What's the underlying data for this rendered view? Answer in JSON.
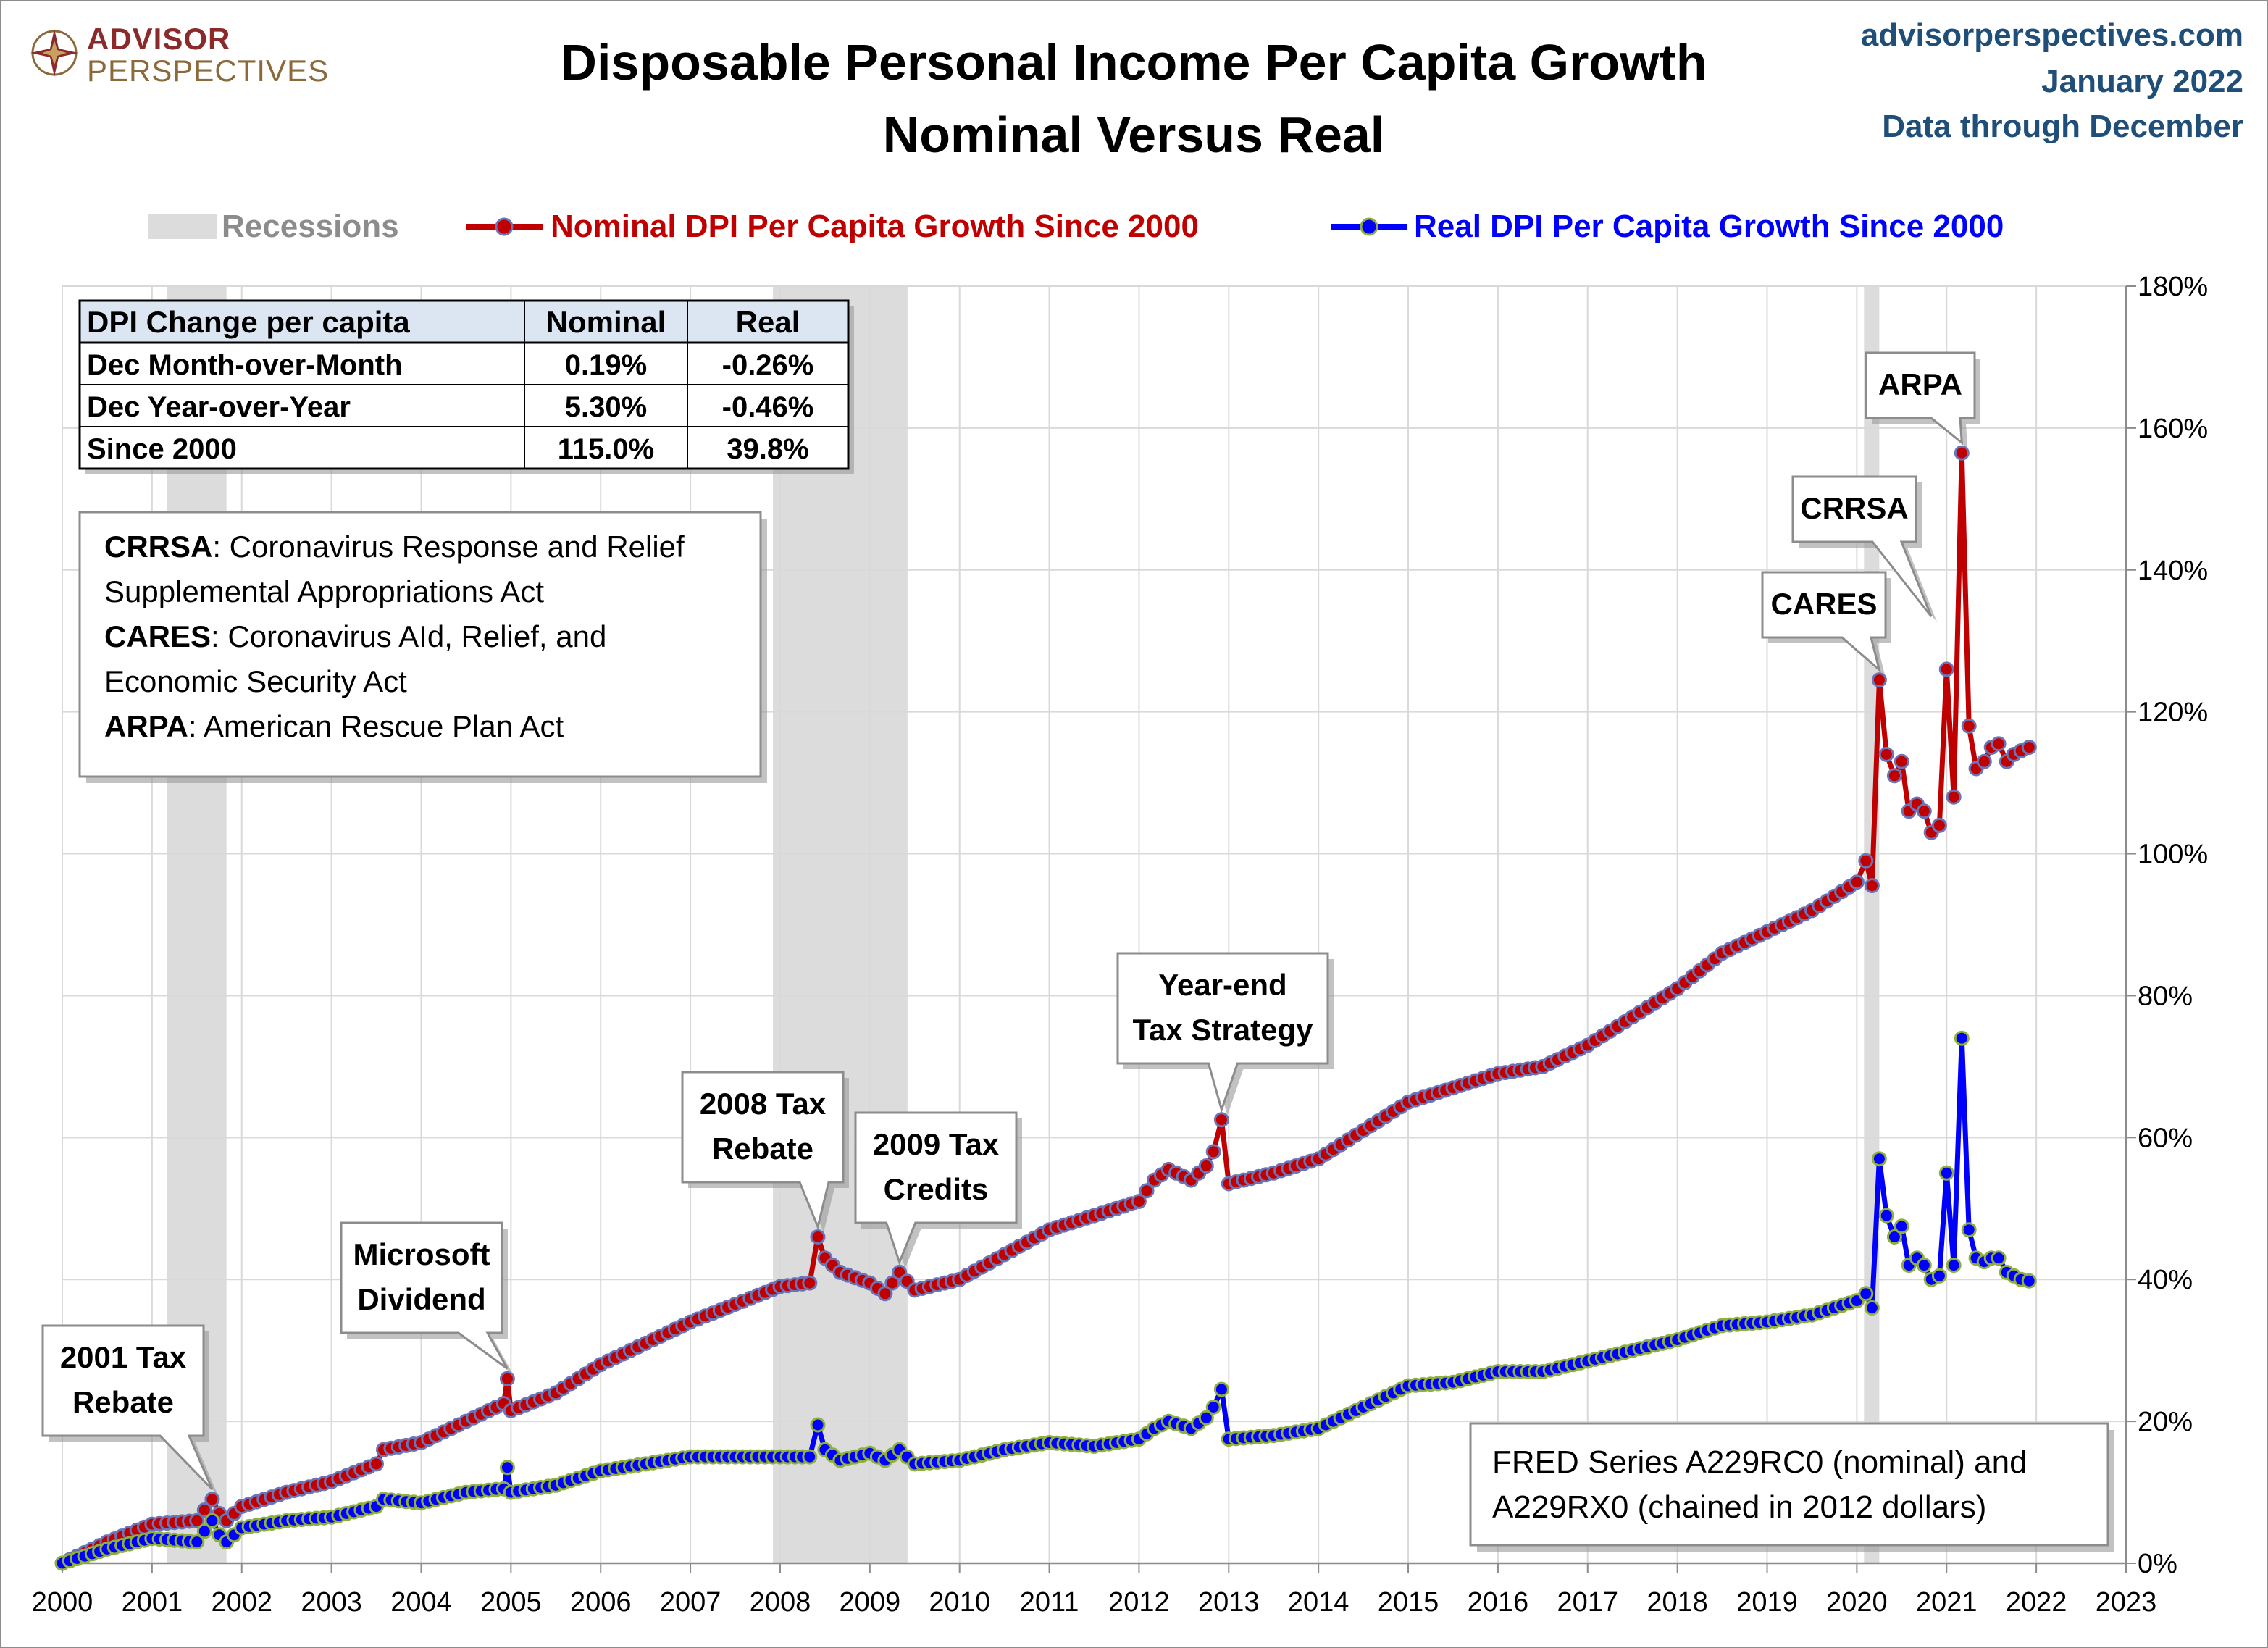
{
  "header": {
    "logo_line1": "ADVISOR",
    "logo_line2": "PERSPECTIVES",
    "title_line1": "Disposable Personal Income Per Capita Growth",
    "title_line2": "Nominal Versus Real",
    "source_line1": "advisorperspectives.com",
    "source_line2": "January 2022",
    "source_line3": "Data through December"
  },
  "legend": {
    "recessions": "Recessions",
    "nominal": "Nominal DPI Per Capita Growth Since 2000",
    "real": "Real DPI Per Capita Growth Since 2000"
  },
  "table": {
    "headers": [
      "DPI Change per capita",
      "Nominal",
      "Real"
    ],
    "rows": [
      [
        "Dec Month-over-Month",
        "0.19%",
        "-0.26%"
      ],
      [
        "Dec Year-over-Year",
        "5.30%",
        "-0.46%"
      ],
      [
        "Since 2000",
        "115.0%",
        "39.8%"
      ]
    ]
  },
  "glossary": [
    {
      "term": "CRRSA",
      "text": ": Coronavirus Response and Relief",
      "cont": "Supplemental Appropriations Act"
    },
    {
      "term": "CARES",
      "text": ": Coronavirus AId, Relief, and",
      "cont": "Economic Security Act"
    },
    {
      "term": "ARPA",
      "text": ": American Rescue Plan Act",
      "cont": ""
    }
  ],
  "source_note": [
    "FRED Series A229RC0 (nominal) and",
    "A229RX0 (chained in 2012 dollars)"
  ],
  "colors": {
    "nominal": "#c00000",
    "real": "#0000ff",
    "nominal_marker_edge": "#6a74b8",
    "real_marker_edge": "#8fb03a",
    "recession": "#dcdcdc",
    "grid": "#d9d9d9"
  },
  "chart_data": {
    "type": "line",
    "x_unit": "year",
    "xlim": [
      2000,
      2023
    ],
    "ylim": [
      0,
      180
    ],
    "x_ticks": [
      "2000",
      "2001",
      "2002",
      "2003",
      "2004",
      "2005",
      "2006",
      "2007",
      "2008",
      "2009",
      "2010",
      "2011",
      "2012",
      "2013",
      "2014",
      "2015",
      "2016",
      "2017",
      "2018",
      "2019",
      "2020",
      "2021",
      "2022",
      "2023"
    ],
    "y_ticks": [
      "0%",
      "20%",
      "40%",
      "60%",
      "80%",
      "100%",
      "120%",
      "140%",
      "160%",
      "180%"
    ],
    "y_tick_values": [
      0,
      20,
      40,
      60,
      80,
      100,
      120,
      140,
      160,
      180
    ],
    "grid": true,
    "legend_position": "top",
    "recessions": [
      [
        2001.17,
        2001.83
      ],
      [
        2007.92,
        2009.42
      ],
      [
        2020.08,
        2020.25
      ]
    ],
    "series": [
      {
        "name": "Nominal DPI Per Capita Growth Since 2000",
        "key": "nominal",
        "points": [
          [
            2000.0,
            0
          ],
          [
            2000.5,
            3
          ],
          [
            2001.0,
            5.5
          ],
          [
            2001.5,
            6
          ],
          [
            2001.67,
            9
          ],
          [
            2001.75,
            7
          ],
          [
            2001.83,
            6
          ],
          [
            2002.0,
            8
          ],
          [
            2002.5,
            10
          ],
          [
            2003.0,
            11.5
          ],
          [
            2003.5,
            14
          ],
          [
            2003.58,
            16
          ],
          [
            2004.0,
            17
          ],
          [
            2004.5,
            20
          ],
          [
            2004.92,
            22.5
          ],
          [
            2004.96,
            26
          ],
          [
            2005.0,
            21.5
          ],
          [
            2005.5,
            24
          ],
          [
            2006.0,
            28
          ],
          [
            2006.5,
            31
          ],
          [
            2007.0,
            34
          ],
          [
            2007.5,
            36.5
          ],
          [
            2008.0,
            39
          ],
          [
            2008.33,
            39.5
          ],
          [
            2008.42,
            46
          ],
          [
            2008.5,
            43
          ],
          [
            2008.67,
            41
          ],
          [
            2009.0,
            39.5
          ],
          [
            2009.17,
            38
          ],
          [
            2009.33,
            41
          ],
          [
            2009.5,
            38.5
          ],
          [
            2010.0,
            40
          ],
          [
            2010.5,
            43.5
          ],
          [
            2011.0,
            47
          ],
          [
            2011.5,
            49
          ],
          [
            2012.0,
            51
          ],
          [
            2012.17,
            54
          ],
          [
            2012.33,
            55.5
          ],
          [
            2012.58,
            54
          ],
          [
            2012.75,
            56
          ],
          [
            2012.83,
            58
          ],
          [
            2012.92,
            62.5
          ],
          [
            2013.0,
            53.5
          ],
          [
            2013.5,
            55
          ],
          [
            2014.0,
            57
          ],
          [
            2014.5,
            61
          ],
          [
            2015.0,
            65
          ],
          [
            2015.5,
            67
          ],
          [
            2016.0,
            69
          ],
          [
            2016.5,
            70
          ],
          [
            2017.0,
            73
          ],
          [
            2017.5,
            77
          ],
          [
            2018.0,
            81
          ],
          [
            2018.5,
            86
          ],
          [
            2019.0,
            89
          ],
          [
            2019.5,
            92
          ],
          [
            2020.0,
            96
          ],
          [
            2020.1,
            99
          ],
          [
            2020.17,
            95.5
          ],
          [
            2020.25,
            124.5
          ],
          [
            2020.33,
            114
          ],
          [
            2020.42,
            111
          ],
          [
            2020.5,
            113
          ],
          [
            2020.58,
            106
          ],
          [
            2020.67,
            107
          ],
          [
            2020.75,
            106
          ],
          [
            2020.83,
            103
          ],
          [
            2020.92,
            104
          ],
          [
            2021.0,
            126
          ],
          [
            2021.08,
            108
          ],
          [
            2021.17,
            156.5
          ],
          [
            2021.25,
            118
          ],
          [
            2021.33,
            112
          ],
          [
            2021.42,
            113
          ],
          [
            2021.5,
            115
          ],
          [
            2021.58,
            115.5
          ],
          [
            2021.67,
            113
          ],
          [
            2021.75,
            114
          ],
          [
            2021.83,
            114.5
          ],
          [
            2021.92,
            115
          ]
        ]
      },
      {
        "name": "Real DPI Per Capita Growth Since 2000",
        "key": "real",
        "points": [
          [
            2000.0,
            0
          ],
          [
            2000.5,
            2
          ],
          [
            2001.0,
            3.5
          ],
          [
            2001.5,
            3
          ],
          [
            2001.67,
            6
          ],
          [
            2001.75,
            4
          ],
          [
            2001.83,
            3
          ],
          [
            2002.0,
            5
          ],
          [
            2002.5,
            6
          ],
          [
            2003.0,
            6.5
          ],
          [
            2003.5,
            8
          ],
          [
            2003.58,
            9
          ],
          [
            2004.0,
            8.5
          ],
          [
            2004.5,
            10
          ],
          [
            2004.92,
            10.5
          ],
          [
            2004.96,
            13.5
          ],
          [
            2005.0,
            10
          ],
          [
            2005.5,
            11
          ],
          [
            2006.0,
            13
          ],
          [
            2006.5,
            14
          ],
          [
            2007.0,
            15
          ],
          [
            2007.5,
            15
          ],
          [
            2008.0,
            15
          ],
          [
            2008.33,
            15
          ],
          [
            2008.42,
            19.5
          ],
          [
            2008.5,
            16
          ],
          [
            2008.67,
            14.5
          ],
          [
            2009.0,
            15.5
          ],
          [
            2009.17,
            14.5
          ],
          [
            2009.33,
            16
          ],
          [
            2009.5,
            14
          ],
          [
            2010.0,
            14.5
          ],
          [
            2010.5,
            16
          ],
          [
            2011.0,
            17
          ],
          [
            2011.5,
            16.5
          ],
          [
            2012.0,
            17.5
          ],
          [
            2012.17,
            19
          ],
          [
            2012.33,
            20
          ],
          [
            2012.58,
            19
          ],
          [
            2012.75,
            20.5
          ],
          [
            2012.83,
            22
          ],
          [
            2012.92,
            24.5
          ],
          [
            2013.0,
            17.5
          ],
          [
            2013.5,
            18
          ],
          [
            2014.0,
            19
          ],
          [
            2014.5,
            22
          ],
          [
            2015.0,
            25
          ],
          [
            2015.5,
            25.5
          ],
          [
            2016.0,
            27
          ],
          [
            2016.5,
            27
          ],
          [
            2017.0,
            28.5
          ],
          [
            2017.5,
            30
          ],
          [
            2018.0,
            31.5
          ],
          [
            2018.5,
            33.5
          ],
          [
            2019.0,
            34
          ],
          [
            2019.5,
            35
          ],
          [
            2020.0,
            37
          ],
          [
            2020.1,
            38
          ],
          [
            2020.17,
            36
          ],
          [
            2020.25,
            57
          ],
          [
            2020.33,
            49
          ],
          [
            2020.42,
            46
          ],
          [
            2020.5,
            47.5
          ],
          [
            2020.58,
            42
          ],
          [
            2020.67,
            43
          ],
          [
            2020.75,
            42
          ],
          [
            2020.83,
            40
          ],
          [
            2020.92,
            40.5
          ],
          [
            2021.0,
            55
          ],
          [
            2021.08,
            42
          ],
          [
            2021.17,
            74
          ],
          [
            2021.25,
            47
          ],
          [
            2021.33,
            43
          ],
          [
            2021.42,
            42.5
          ],
          [
            2021.5,
            43
          ],
          [
            2021.58,
            43
          ],
          [
            2021.67,
            41
          ],
          [
            2021.75,
            40.5
          ],
          [
            2021.83,
            40
          ],
          [
            2021.92,
            39.8
          ]
        ]
      }
    ],
    "annotations": [
      {
        "text": [
          "2001 Tax",
          "Rebate"
        ],
        "x": 2001.67,
        "y": 9
      },
      {
        "text": [
          "Microsoft",
          "Dividend"
        ],
        "x": 2004.96,
        "y": 26
      },
      {
        "text": [
          "2008 Tax",
          "Rebate"
        ],
        "x": 2008.42,
        "y": 46
      },
      {
        "text": [
          "2009 Tax",
          "Credits"
        ],
        "x": 2009.33,
        "y": 41
      },
      {
        "text": [
          "Year-end",
          "Tax Strategy"
        ],
        "x": 2012.92,
        "y": 62.5
      },
      {
        "text": [
          "CARES"
        ],
        "x": 2020.25,
        "y": 124.5
      },
      {
        "text": [
          "CRRSA"
        ],
        "x": 2020.83,
        "y": 132
      },
      {
        "text": [
          "ARPA"
        ],
        "x": 2021.17,
        "y": 156.5
      }
    ]
  }
}
